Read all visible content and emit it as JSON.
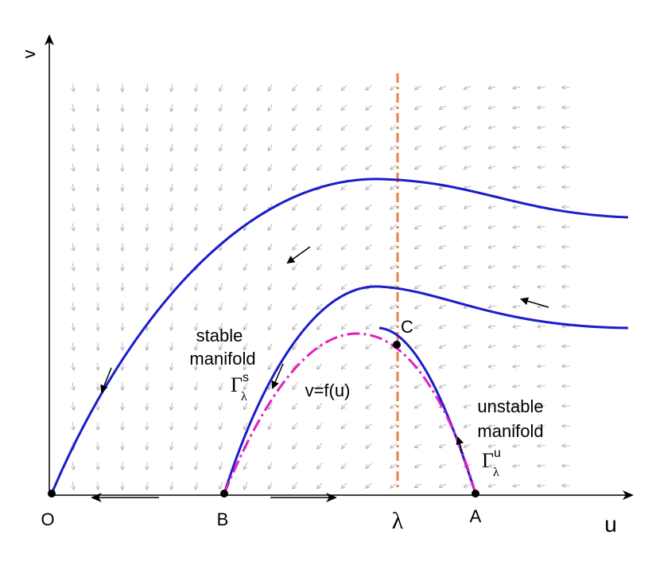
{
  "axes": {
    "y_label": "v",
    "x_label": "u"
  },
  "points": {
    "origin": "O",
    "b": "B",
    "lambda": "λ",
    "a": "A",
    "c": "C"
  },
  "stable_manifold": {
    "label_lines": [
      "stable",
      "manifold"
    ],
    "symbol": "Γ",
    "superscript": "s",
    "subscript": "λ"
  },
  "curve_label": "v=f(u)",
  "unstable_manifold": {
    "label_lines": [
      "unstable",
      "manifold"
    ],
    "symbol": "Γ",
    "superscript": "u",
    "subscript": "λ"
  }
}
